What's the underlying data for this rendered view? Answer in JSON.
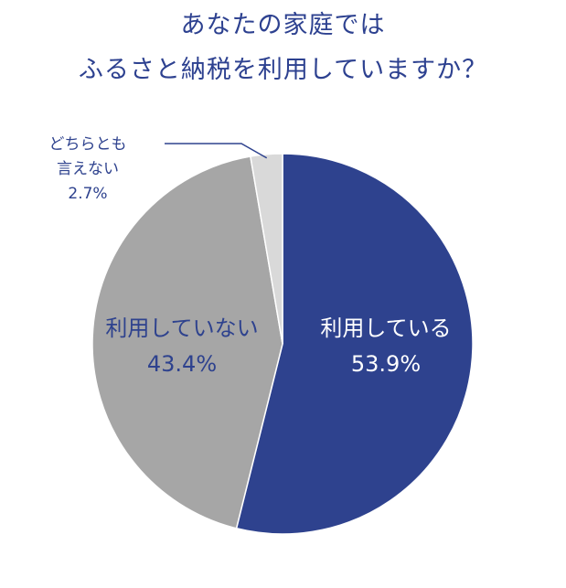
{
  "chart_data": {
    "type": "pie",
    "title_lines": [
      "あなたの家庭では",
      "ふるさと納税を利用していますか？"
    ],
    "slices": [
      {
        "label": "利用している",
        "value": 53.9,
        "value_label": "53.9%",
        "color": "#2e428e",
        "text_color": "#ffffff"
      },
      {
        "label": "利用していない",
        "value": 43.4,
        "value_label": "43.4%",
        "color": "#a6a6a6",
        "text_color": "#2e428e"
      },
      {
        "label_lines": [
          "どちらとも",
          "言えない"
        ],
        "value": 2.7,
        "value_label": "2.7%",
        "color": "#d9d9d9",
        "text_color": "#2e428e"
      }
    ],
    "start_angle": "12 o'clock",
    "direction": "clockwise"
  }
}
